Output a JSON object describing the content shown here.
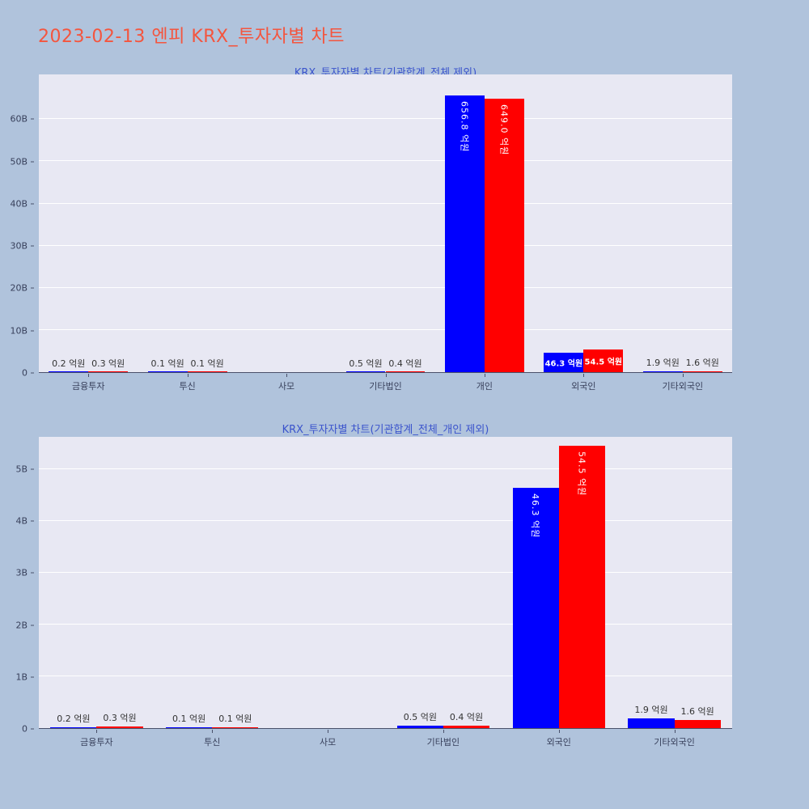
{
  "page": {
    "title": "2023-02-13 엔피 KRX_투자자별 차트"
  },
  "colors": {
    "page_bg": "#b0c3dc",
    "page_title": "#f4553e",
    "chart_title": "#3b54cc",
    "plot_bg": "#e8e8f3",
    "grid": "#ffffff",
    "axis_line": "#49506a",
    "tick_text": "#373f5a",
    "series1": "#0000ff",
    "series2": "#ff0000",
    "bar_label_inside": "#ffffff",
    "bar_label_outside": "#333333"
  },
  "chart_data": [
    {
      "type": "bar",
      "title": "KRX_투자자별 차트(기관합계_전체 제외)",
      "unit": "억원",
      "grid": true,
      "legend": "none",
      "categories": [
        "금융투자",
        "투신",
        "사모",
        "기타법인",
        "개인",
        "외국인",
        "기타외국인"
      ],
      "series": [
        {
          "color_key": "series1",
          "values": [
            0.2,
            0.1,
            0,
            0.5,
            656.8,
            46.3,
            1.9
          ]
        },
        {
          "color_key": "series2",
          "values": [
            0.3,
            0.1,
            0,
            0.4,
            649.0,
            54.5,
            1.6
          ]
        }
      ],
      "ylim_eokwon": [
        0,
        706
      ],
      "yticks": [
        {
          "v": 0,
          "label": "0"
        },
        {
          "v": 100,
          "label": "10B"
        },
        {
          "v": 200,
          "label": "20B"
        },
        {
          "v": 300,
          "label": "30B"
        },
        {
          "v": 400,
          "label": "40B"
        },
        {
          "v": 500,
          "label": "50B"
        },
        {
          "v": 600,
          "label": "60B"
        }
      ]
    },
    {
      "type": "bar",
      "title": "KRX_투자자별 차트(기관합계_전체_개인 제외)",
      "unit": "억원",
      "grid": true,
      "legend": "none",
      "categories": [
        "금융투자",
        "투신",
        "사모",
        "기타법인",
        "외국인",
        "기타외국인"
      ],
      "series": [
        {
          "color_key": "series1",
          "values": [
            0.2,
            0.1,
            0,
            0.5,
            46.3,
            1.9
          ]
        },
        {
          "color_key": "series2",
          "values": [
            0.3,
            0.1,
            0,
            0.4,
            54.5,
            1.6
          ]
        }
      ],
      "ylim_eokwon": [
        0,
        56.2
      ],
      "yticks": [
        {
          "v": 0,
          "label": "0"
        },
        {
          "v": 10,
          "label": "1B"
        },
        {
          "v": 20,
          "label": "2B"
        },
        {
          "v": 30,
          "label": "3B"
        },
        {
          "v": 40,
          "label": "4B"
        },
        {
          "v": 50,
          "label": "5B"
        }
      ]
    }
  ]
}
